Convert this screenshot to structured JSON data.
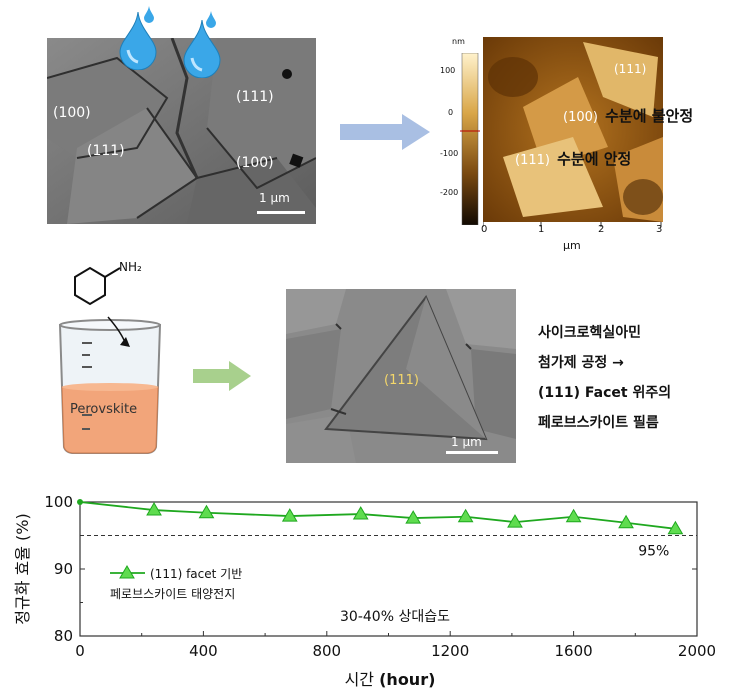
{
  "top": {
    "sem_labels": {
      "l100_left": "(100)",
      "l111_left": "(111)",
      "l111_right": "(111)",
      "l100_right": "(100)"
    },
    "scale_bar": "1 μm",
    "afm": {
      "unit": "nm",
      "colorbar_ticks": [
        "100",
        "0",
        "-100",
        "-200"
      ],
      "x_ticks": [
        "0",
        "1",
        "2",
        "3"
      ],
      "x_unit": "μm",
      "label_111_top": "(111)",
      "label_100": "(100)",
      "label_100_text": "수분에 불안정",
      "label_111": "(111)",
      "label_111_text": "수분에 안정"
    }
  },
  "middle": {
    "molecule_label": "NH₂",
    "beaker_label": "Perovskite",
    "sem_label": "(111)",
    "scale_bar": "1 μm",
    "description": [
      "사이크로헥실아민",
      "첨가제 공정 →",
      "(111) Facet 위주의",
      "페로브스카이트 필름"
    ]
  },
  "chart_data": {
    "type": "line",
    "x": [
      0,
      240,
      410,
      680,
      910,
      1080,
      1250,
      1410,
      1600,
      1770,
      1930
    ],
    "series": [
      {
        "name": "(111) facet 기반 페로브스카이트 태양전지",
        "values": [
          100,
          98.8,
          98.4,
          97.9,
          98.2,
          97.6,
          97.8,
          97.0,
          97.8,
          96.9,
          96.0
        ]
      }
    ],
    "reference_line": {
      "y": 95,
      "label": "95%"
    },
    "xlabel_main": "시간",
    "xlabel_unit": "(hour)",
    "ylabel": "정규화 효율 (%)",
    "xlim": [
      0,
      2000
    ],
    "ylim": [
      80,
      100
    ],
    "x_ticks": [
      "0",
      "400",
      "800",
      "1200",
      "1600",
      "2000"
    ],
    "y_ticks": [
      "100",
      "90",
      "80"
    ],
    "legend_line1": "(111) facet 기반",
    "legend_line2": "페로브스카이트 태양전지",
    "annotation": "30-40% 상대습도",
    "color": "#1fa81f"
  }
}
